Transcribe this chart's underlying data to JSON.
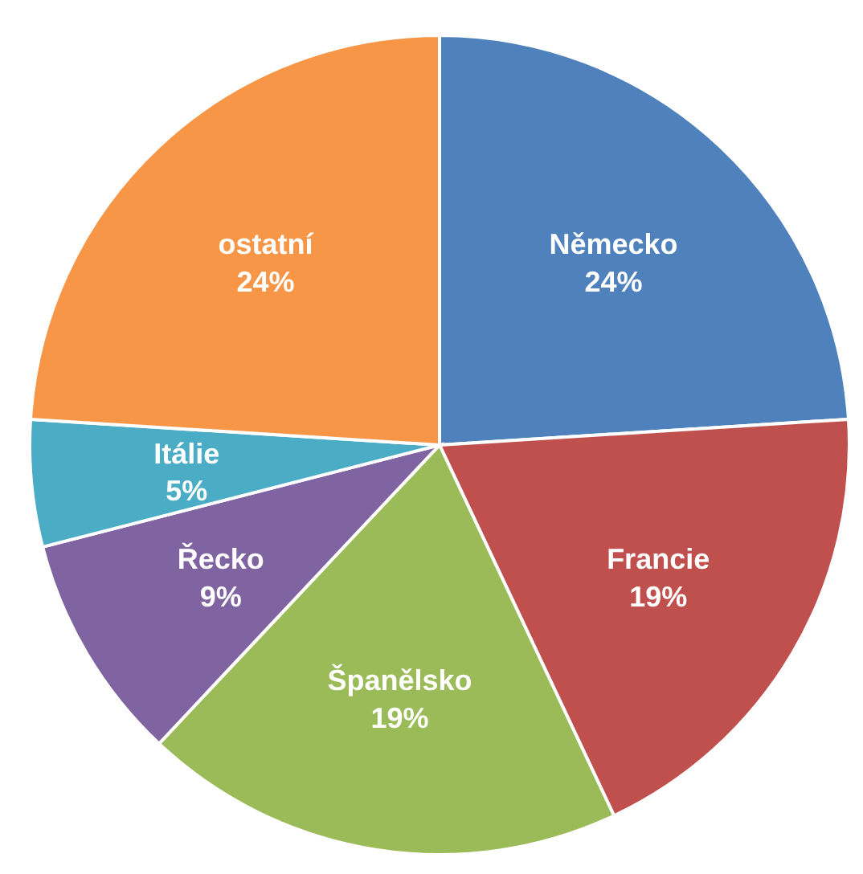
{
  "chart_data": {
    "type": "pie",
    "categories": [
      "Německo",
      "Francie",
      "Španělsko",
      "Řecko",
      "Itálie",
      "ostatní"
    ],
    "values": [
      24,
      19,
      19,
      9,
      5,
      24
    ],
    "colors": [
      "#4f81bd",
      "#c0504d",
      "#9bbb59",
      "#8064a2",
      "#4bacc6",
      "#f79646"
    ],
    "value_labels": [
      "24%",
      "19%",
      "19%",
      "9%",
      "5%",
      "24%"
    ],
    "legend": false
  }
}
